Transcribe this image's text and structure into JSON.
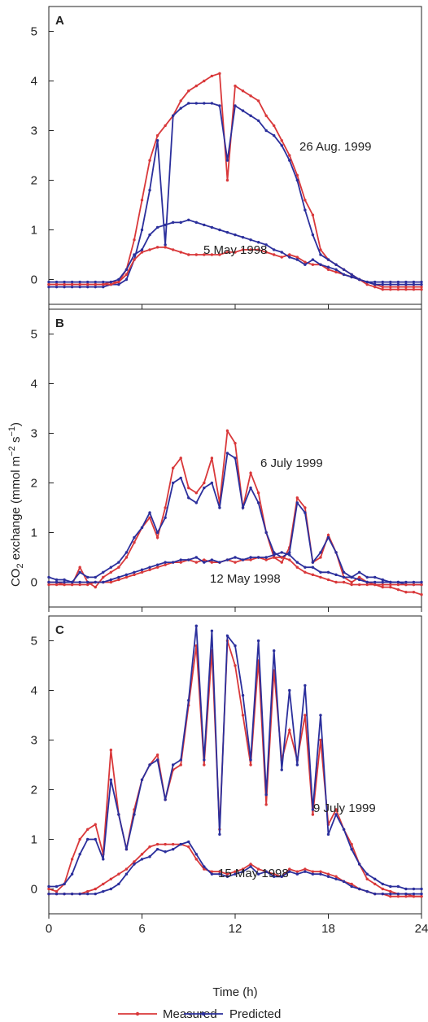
{
  "chart_data": [
    {
      "type": "line",
      "panel_label": "A",
      "xlim": [
        0,
        24
      ],
      "xticks": [
        0,
        6,
        12,
        18,
        24
      ],
      "show_xtick_labels": false,
      "ylim": [
        -0.5,
        5.5
      ],
      "yticks": [
        0,
        1,
        2,
        3,
        4,
        5
      ],
      "x": [
        0,
        0.5,
        1,
        1.5,
        2,
        2.5,
        3,
        3.5,
        4,
        4.5,
        5,
        5.5,
        6,
        6.5,
        7,
        7.5,
        8,
        8.5,
        9,
        9.5,
        10,
        10.5,
        11,
        11.5,
        12,
        12.5,
        13,
        13.5,
        14,
        14.5,
        15,
        15.5,
        16,
        16.5,
        17,
        17.5,
        18,
        18.5,
        19,
        19.5,
        20,
        20.5,
        21,
        21.5,
        22,
        22.5,
        23,
        23.5,
        24
      ],
      "annotations": [
        "26 Aug. 1999",
        "5 May 1998"
      ],
      "series": [
        {
          "name": "Measured",
          "color": "#d9383a",
          "values": [
            -0.1,
            -0.1,
            -0.1,
            -0.1,
            -0.1,
            -0.1,
            -0.1,
            -0.1,
            -0.05,
            -0.05,
            0.2,
            0.8,
            1.6,
            2.4,
            2.9,
            3.1,
            3.3,
            3.6,
            3.8,
            3.9,
            4.0,
            4.1,
            4.15,
            2.0,
            3.9,
            3.8,
            3.7,
            3.6,
            3.3,
            3.1,
            2.8,
            2.5,
            2.1,
            1.6,
            1.3,
            0.6,
            0.4,
            0.3,
            0.2,
            0.1,
            0.0,
            -0.05,
            -0.1,
            -0.15,
            -0.15,
            -0.15,
            -0.15,
            -0.15,
            -0.15
          ]
        },
        {
          "name": "Predicted",
          "color": "#2b2f9c",
          "values": [
            -0.15,
            -0.15,
            -0.15,
            -0.15,
            -0.15,
            -0.15,
            -0.15,
            -0.15,
            -0.1,
            -0.1,
            0.0,
            0.4,
            1.0,
            1.8,
            2.8,
            0.7,
            3.3,
            3.45,
            3.55,
            3.55,
            3.55,
            3.55,
            3.5,
            2.4,
            3.5,
            3.4,
            3.3,
            3.2,
            3.0,
            2.9,
            2.7,
            2.4,
            2.0,
            1.4,
            0.9,
            0.5,
            0.4,
            0.3,
            0.2,
            0.1,
            0.0,
            -0.05,
            -0.1,
            -0.1,
            -0.1,
            -0.1,
            -0.1,
            -0.1,
            -0.1
          ]
        },
        {
          "name": "Measured",
          "color": "#d9383a",
          "values": [
            -0.1,
            -0.1,
            -0.1,
            -0.1,
            -0.1,
            -0.1,
            -0.1,
            -0.1,
            -0.1,
            -0.05,
            0.1,
            0.4,
            0.55,
            0.6,
            0.65,
            0.65,
            0.6,
            0.55,
            0.5,
            0.5,
            0.5,
            0.5,
            0.5,
            0.55,
            0.55,
            0.6,
            0.6,
            0.6,
            0.55,
            0.5,
            0.45,
            0.5,
            0.45,
            0.35,
            0.3,
            0.3,
            0.2,
            0.15,
            0.1,
            0.05,
            0.0,
            -0.1,
            -0.15,
            -0.2,
            -0.2,
            -0.2,
            -0.2,
            -0.2,
            -0.2
          ]
        },
        {
          "name": "Predicted",
          "color": "#2b2f9c",
          "values": [
            -0.05,
            -0.05,
            -0.05,
            -0.05,
            -0.05,
            -0.05,
            -0.05,
            -0.05,
            -0.05,
            0.0,
            0.2,
            0.5,
            0.6,
            0.9,
            1.05,
            1.1,
            1.15,
            1.15,
            1.2,
            1.15,
            1.1,
            1.05,
            1.0,
            0.95,
            0.9,
            0.85,
            0.8,
            0.75,
            0.7,
            0.6,
            0.55,
            0.45,
            0.4,
            0.3,
            0.4,
            0.3,
            0.25,
            0.2,
            0.1,
            0.05,
            0.0,
            -0.05,
            -0.05,
            -0.05,
            -0.05,
            -0.05,
            -0.05,
            -0.05,
            -0.05
          ]
        }
      ]
    },
    {
      "type": "line",
      "panel_label": "B",
      "xlim": [
        0,
        24
      ],
      "xticks": [
        0,
        6,
        12,
        18,
        24
      ],
      "show_xtick_labels": false,
      "ylim": [
        -0.5,
        5.5
      ],
      "yticks": [
        0,
        1,
        2,
        3,
        4,
        5
      ],
      "ylabel": [
        "CO",
        "2",
        " exchange (mmol m",
        "−2",
        " s",
        "−1",
        ")"
      ],
      "x": [
        0,
        0.5,
        1,
        1.5,
        2,
        2.5,
        3,
        3.5,
        4,
        4.5,
        5,
        5.5,
        6,
        6.5,
        7,
        7.5,
        8,
        8.5,
        9,
        9.5,
        10,
        10.5,
        11,
        11.5,
        12,
        12.5,
        13,
        13.5,
        14,
        14.5,
        15,
        15.5,
        16,
        16.5,
        17,
        17.5,
        18,
        18.5,
        19,
        19.5,
        20,
        20.5,
        21,
        21.5,
        22,
        22.5,
        23,
        23.5,
        24
      ],
      "annotations": [
        "6 July 1999",
        "12 May 1998"
      ],
      "series": [
        {
          "name": "Measured",
          "color": "#d9383a",
          "values": [
            0.0,
            0.0,
            -0.05,
            -0.05,
            0.3,
            0.0,
            -0.1,
            0.1,
            0.2,
            0.3,
            0.5,
            0.8,
            1.1,
            1.3,
            0.9,
            1.5,
            2.3,
            2.5,
            1.9,
            1.8,
            2.0,
            2.5,
            1.6,
            3.05,
            2.8,
            1.5,
            2.2,
            1.8,
            1.0,
            0.5,
            0.4,
            0.7,
            1.7,
            1.5,
            0.4,
            0.5,
            0.95,
            0.6,
            0.1,
            0.0,
            0.1,
            0.0,
            -0.05,
            -0.1,
            -0.1,
            -0.15,
            -0.2,
            -0.2,
            -0.25
          ]
        },
        {
          "name": "Predicted",
          "color": "#2b2f9c",
          "values": [
            0.1,
            0.05,
            0.05,
            0.0,
            0.2,
            0.1,
            0.1,
            0.2,
            0.3,
            0.4,
            0.6,
            0.9,
            1.1,
            1.4,
            1.0,
            1.3,
            2.0,
            2.1,
            1.7,
            1.6,
            1.9,
            2.0,
            1.5,
            2.6,
            2.5,
            1.5,
            1.9,
            1.6,
            1.0,
            0.6,
            0.5,
            0.6,
            1.6,
            1.4,
            0.4,
            0.6,
            0.9,
            0.6,
            0.2,
            0.1,
            0.2,
            0.1,
            0.1,
            0.05,
            0.0,
            0.0,
            -0.05,
            -0.05,
            -0.05
          ]
        },
        {
          "name": "Measured",
          "color": "#d9383a",
          "values": [
            -0.05,
            -0.05,
            -0.05,
            -0.05,
            -0.05,
            -0.05,
            0.0,
            0.0,
            0.0,
            0.05,
            0.1,
            0.15,
            0.2,
            0.25,
            0.3,
            0.35,
            0.4,
            0.4,
            0.45,
            0.4,
            0.45,
            0.4,
            0.4,
            0.45,
            0.4,
            0.45,
            0.45,
            0.5,
            0.45,
            0.5,
            0.5,
            0.45,
            0.3,
            0.2,
            0.15,
            0.1,
            0.05,
            0.0,
            0.0,
            -0.05,
            -0.05,
            -0.05,
            -0.05,
            -0.05,
            -0.05,
            -0.05,
            -0.05,
            -0.05,
            -0.05
          ]
        },
        {
          "name": "Predicted",
          "color": "#2b2f9c",
          "values": [
            0.0,
            0.0,
            0.0,
            0.0,
            0.0,
            0.0,
            0.0,
            0.0,
            0.05,
            0.1,
            0.15,
            0.2,
            0.25,
            0.3,
            0.35,
            0.4,
            0.4,
            0.45,
            0.45,
            0.5,
            0.4,
            0.45,
            0.4,
            0.45,
            0.5,
            0.45,
            0.5,
            0.5,
            0.5,
            0.55,
            0.6,
            0.55,
            0.4,
            0.3,
            0.3,
            0.2,
            0.2,
            0.15,
            0.1,
            0.1,
            0.05,
            0.0,
            0.0,
            0.0,
            0.0,
            0.0,
            0.0,
            0.0,
            0.0
          ]
        }
      ]
    },
    {
      "type": "line",
      "panel_label": "C",
      "xlim": [
        0,
        24
      ],
      "xticks": [
        0,
        6,
        12,
        18,
        24
      ],
      "show_xtick_labels": true,
      "ylim": [
        -0.5,
        5.5
      ],
      "yticks": [
        0,
        1,
        2,
        3,
        4,
        5
      ],
      "xlabel": "Time (h)",
      "x": [
        0,
        0.5,
        1,
        1.5,
        2,
        2.5,
        3,
        3.5,
        4,
        4.5,
        5,
        5.5,
        6,
        6.5,
        7,
        7.5,
        8,
        8.5,
        9,
        9.5,
        10,
        10.5,
        11,
        11.5,
        12,
        12.5,
        13,
        13.5,
        14,
        14.5,
        15,
        15.5,
        16,
        16.5,
        17,
        17.5,
        18,
        18.5,
        19,
        19.5,
        20,
        20.5,
        21,
        21.5,
        22,
        22.5,
        23,
        23.5,
        24
      ],
      "annotations": [
        "9 July 1999",
        "15 May 1998"
      ],
      "series": [
        {
          "name": "Measured",
          "color": "#d9383a",
          "values": [
            0.0,
            -0.05,
            0.1,
            0.6,
            1.0,
            1.2,
            1.3,
            0.7,
            2.8,
            1.5,
            0.8,
            1.6,
            2.2,
            2.5,
            2.7,
            1.8,
            2.4,
            2.5,
            3.7,
            4.9,
            2.5,
            4.8,
            1.2,
            5.0,
            4.5,
            3.5,
            2.5,
            4.6,
            1.7,
            4.4,
            2.6,
            3.2,
            2.6,
            3.5,
            1.5,
            3.0,
            1.3,
            1.6,
            1.2,
            0.9,
            0.5,
            0.2,
            0.1,
            0.0,
            -0.05,
            -0.1,
            -0.1,
            -0.15,
            -0.15
          ]
        },
        {
          "name": "Predicted",
          "color": "#2b2f9c",
          "values": [
            0.05,
            0.05,
            0.1,
            0.3,
            0.7,
            1.0,
            1.0,
            0.6,
            2.2,
            1.5,
            0.8,
            1.5,
            2.2,
            2.5,
            2.6,
            1.8,
            2.5,
            2.6,
            3.8,
            5.3,
            2.6,
            5.2,
            1.1,
            5.1,
            4.9,
            3.9,
            2.6,
            5.0,
            1.9,
            4.8,
            2.4,
            4.0,
            2.5,
            4.1,
            1.6,
            3.5,
            1.1,
            1.5,
            1.2,
            0.8,
            0.5,
            0.3,
            0.2,
            0.1,
            0.05,
            0.05,
            0.0,
            0.0,
            0.0
          ]
        },
        {
          "name": "Measured",
          "color": "#d9383a",
          "values": [
            -0.1,
            -0.1,
            -0.1,
            -0.1,
            -0.1,
            -0.05,
            0.0,
            0.1,
            0.2,
            0.3,
            0.4,
            0.55,
            0.7,
            0.85,
            0.9,
            0.9,
            0.9,
            0.9,
            0.85,
            0.6,
            0.4,
            0.35,
            0.35,
            0.3,
            0.35,
            0.4,
            0.5,
            0.4,
            0.35,
            0.3,
            0.25,
            0.4,
            0.35,
            0.4,
            0.35,
            0.35,
            0.3,
            0.25,
            0.15,
            0.1,
            0.0,
            -0.05,
            -0.1,
            -0.1,
            -0.15,
            -0.15,
            -0.15,
            -0.15,
            -0.15
          ]
        },
        {
          "name": "Predicted",
          "color": "#2b2f9c",
          "values": [
            -0.1,
            -0.1,
            -0.1,
            -0.1,
            -0.1,
            -0.1,
            -0.1,
            -0.05,
            0.0,
            0.1,
            0.3,
            0.5,
            0.6,
            0.65,
            0.8,
            0.75,
            0.8,
            0.9,
            0.95,
            0.7,
            0.45,
            0.3,
            0.3,
            0.25,
            0.3,
            0.35,
            0.45,
            0.3,
            0.35,
            0.25,
            0.25,
            0.35,
            0.3,
            0.35,
            0.3,
            0.3,
            0.25,
            0.2,
            0.15,
            0.05,
            0.0,
            -0.05,
            -0.1,
            -0.1,
            -0.1,
            -0.1,
            -0.1,
            -0.1,
            -0.1
          ]
        }
      ]
    }
  ]
}
